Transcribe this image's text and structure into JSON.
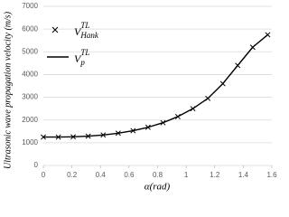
{
  "chart_data": {
    "type": "line",
    "y_label": "Ultrasonic wave propagation velocity (m/s)",
    "x_label": "α(rad)",
    "x": [
      0,
      0.105,
      0.209,
      0.314,
      0.419,
      0.524,
      0.628,
      0.733,
      0.838,
      0.942,
      1.047,
      1.152,
      1.257,
      1.361,
      1.466,
      1.571
    ],
    "series": [
      {
        "name": "V",
        "name_sub": "Hank",
        "name_sup": "TL",
        "style": "marker",
        "color": "#000000",
        "values": [
          1250,
          1250,
          1260,
          1290,
          1340,
          1420,
          1530,
          1680,
          1880,
          2150,
          2500,
          2950,
          3600,
          4400,
          5200,
          5750
        ]
      },
      {
        "name": "V",
        "name_sub": "p",
        "name_sup": "TL",
        "style": "line",
        "color": "#000000",
        "values": [
          1250,
          1250,
          1260,
          1290,
          1340,
          1420,
          1530,
          1680,
          1880,
          2150,
          2500,
          2950,
          3600,
          4400,
          5200,
          5750
        ]
      }
    ],
    "xlim": [
      0,
      1.6
    ],
    "xticks": [
      0,
      0.2,
      0.4,
      0.6,
      0.8,
      1,
      1.2,
      1.4,
      1.6
    ],
    "ylim": [
      0,
      7000
    ],
    "yticks": [
      0,
      1000,
      2000,
      3000,
      4000,
      5000,
      6000,
      7000
    ],
    "grid": true
  }
}
